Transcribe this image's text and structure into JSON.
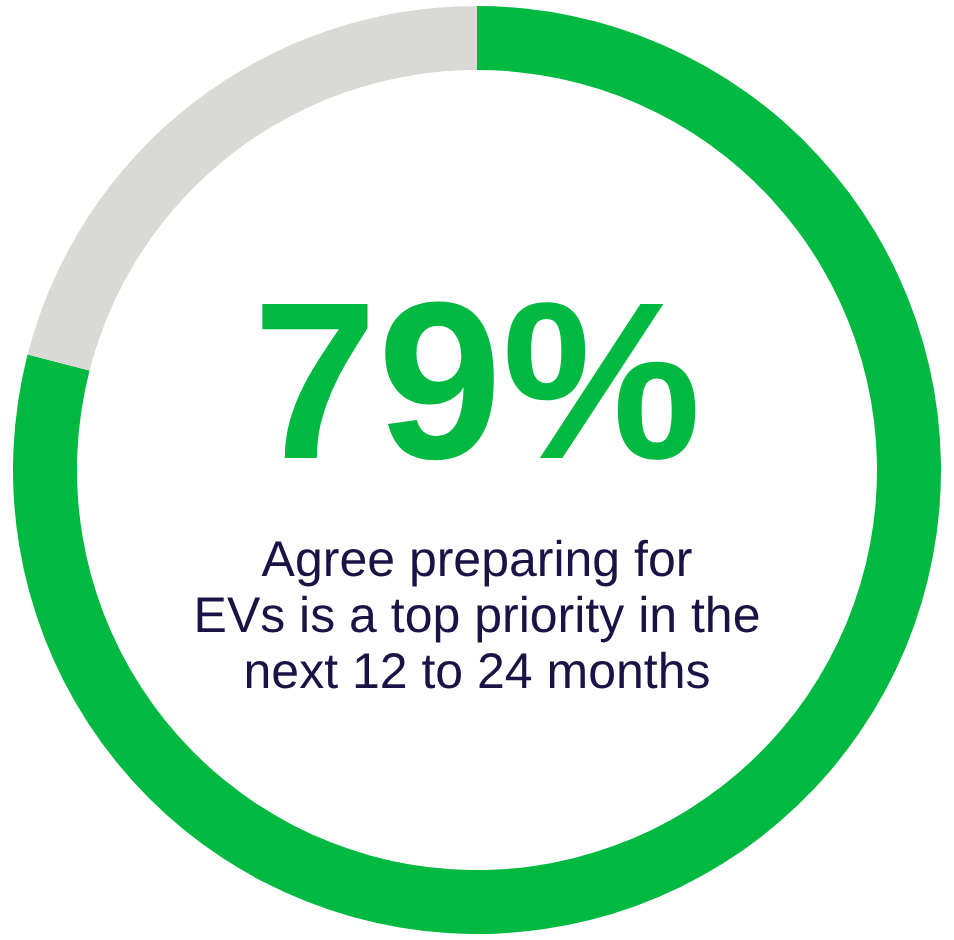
{
  "chart_data": {
    "type": "donut",
    "categories": [
      null,
      null
    ],
    "values": [
      79,
      21
    ],
    "colors": [
      "#00b940",
      "#d9d9d6"
    ],
    "value_labels": [
      "79%",
      null
    ],
    "annotations": [
      "Agree preparing for\nEVs is a top priority in the\nnext 12 to 24 months"
    ]
  }
}
